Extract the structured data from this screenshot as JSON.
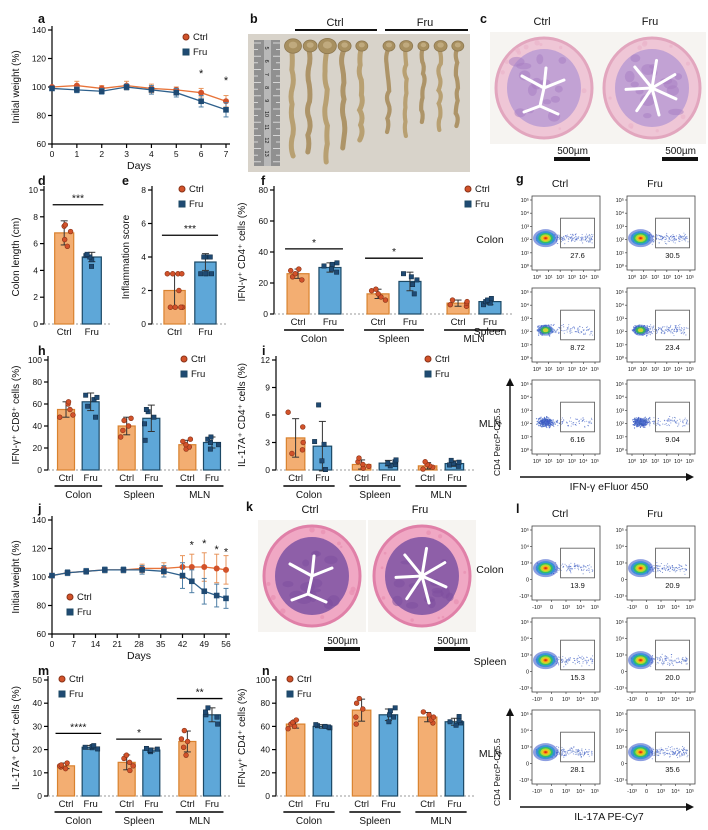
{
  "colors": {
    "ctrl_fill": "#F3AE72",
    "ctrl_edge": "#D9822F",
    "ctrl_point": "#D2522A",
    "ctrl_point_edge": "#8A3318",
    "ctrl_line": "#E8743A",
    "ctrl_err": "#E8955C",
    "fru_fill": "#5EA7D8",
    "fru_edge": "#1C4966",
    "fru_point": "#1F4A73",
    "fru_line": "#2E608C",
    "fru_err": "#4F7FA6"
  },
  "legend": {
    "ctrl": "Ctrl",
    "fru": "Fru"
  },
  "panels": {
    "a": {
      "letter": "a"
    },
    "b": {
      "letter": "b",
      "ctrl": "Ctrl",
      "fru": "Fru"
    },
    "c": {
      "letter": "c",
      "ctrl": "Ctrl",
      "fru": "Fru",
      "scale": "500µm"
    },
    "d": {
      "letter": "d"
    },
    "e": {
      "letter": "e"
    },
    "f": {
      "letter": "f"
    },
    "g": {
      "letter": "g"
    },
    "h": {
      "letter": "h"
    },
    "i": {
      "letter": "i"
    },
    "j": {
      "letter": "j"
    },
    "k": {
      "letter": "k",
      "ctrl": "Ctrl",
      "fru": "Fru",
      "scale": "500µm"
    },
    "l": {
      "letter": "l"
    },
    "m": {
      "letter": "m"
    },
    "n": {
      "letter": "n"
    }
  },
  "chart_data": [
    {
      "id": "a",
      "type": "line",
      "ylabel": "Initial weight (%)",
      "xlabel": "Days",
      "ylim": [
        60,
        140
      ],
      "yticks": [
        60,
        80,
        100,
        120,
        140
      ],
      "xlim": [
        0,
        7
      ],
      "xticks": [
        0,
        1,
        2,
        3,
        4,
        5,
        6,
        7
      ],
      "x": [
        0,
        1,
        2,
        3,
        4,
        5,
        6,
        7
      ],
      "series": [
        {
          "name": "Ctrl",
          "marker": "circle",
          "values": [
            100,
            101,
            99,
            101,
            99,
            98,
            96,
            90
          ],
          "errs": [
            1,
            3,
            2,
            3,
            3,
            2,
            3,
            4
          ]
        },
        {
          "name": "Fru",
          "marker": "square",
          "values": [
            99,
            98,
            97,
            100,
            98,
            96,
            90,
            84
          ],
          "errs": [
            1,
            2,
            2,
            2,
            3,
            3,
            4,
            5
          ]
        }
      ],
      "sig": [
        {
          "x": 6,
          "y": 107,
          "label": "*"
        },
        {
          "x": 7,
          "y": 102,
          "label": "*"
        }
      ],
      "legend": "tr"
    },
    {
      "id": "j",
      "type": "line",
      "ylabel": "Initial weight (%)",
      "xlabel": "Days",
      "ylim": [
        60,
        140
      ],
      "yticks": [
        60,
        80,
        100,
        120,
        140
      ],
      "xlim": [
        0,
        56
      ],
      "xticks": [
        0,
        7,
        14,
        21,
        28,
        35,
        42,
        49,
        56
      ],
      "x": [
        0,
        5,
        11,
        17,
        23,
        29,
        36,
        42,
        45,
        49,
        53,
        56
      ],
      "series": [
        {
          "name": "Ctrl",
          "marker": "circle",
          "values": [
            101,
            103,
            104,
            105,
            105,
            106,
            106,
            107,
            107,
            107,
            106,
            105
          ],
          "errs": [
            1,
            2,
            2,
            2,
            2,
            3,
            4,
            8,
            9,
            10,
            10,
            10
          ]
        },
        {
          "name": "Fru",
          "marker": "square",
          "values": [
            101,
            103,
            104,
            105,
            105,
            105,
            104,
            101,
            97,
            90,
            87,
            85
          ],
          "errs": [
            1,
            2,
            2,
            2,
            2,
            3,
            4,
            9,
            8,
            9,
            8,
            7
          ]
        }
      ],
      "sig": [
        {
          "x": 45,
          "y": 120,
          "label": "*"
        },
        {
          "x": 49,
          "y": 121,
          "label": "*"
        },
        {
          "x": 53,
          "y": 117,
          "label": "*"
        },
        {
          "x": 56,
          "y": 115,
          "label": "*"
        }
      ],
      "legend": "bl"
    },
    {
      "id": "d",
      "type": "bar",
      "ylabel": "Colon length (cm)",
      "ylim": [
        0,
        10
      ],
      "yticks": [
        0,
        2,
        4,
        6,
        8,
        10
      ],
      "groups": [
        ""
      ],
      "bar_labels": [
        "Ctrl",
        "Fru"
      ],
      "series": [
        {
          "name": "Ctrl",
          "means": [
            6.8
          ],
          "errs": [
            0.9
          ],
          "points": [
            [
              5.8,
              6.3,
              6.9,
              7.3,
              7.4
            ]
          ]
        },
        {
          "name": "Fru",
          "means": [
            5.0
          ],
          "errs": [
            0.35
          ],
          "points": [
            [
              4.3,
              4.8,
              5.0,
              5.1,
              5.2
            ]
          ]
        }
      ],
      "sig": [
        {
          "group": 0,
          "label": "***",
          "y": 8.9
        }
      ],
      "legend": null
    },
    {
      "id": "e",
      "type": "bar",
      "ylabel": "Inflammation score",
      "ylim": [
        0,
        8
      ],
      "yticks": [
        0,
        2,
        4,
        6,
        8
      ],
      "groups": [
        ""
      ],
      "bar_labels": [
        "Ctrl",
        "Fru"
      ],
      "series": [
        {
          "name": "Ctrl",
          "means": [
            2.0
          ],
          "errs": [
            1.0
          ],
          "points": [
            [
              1,
              1,
              1,
              1,
              2,
              3,
              3,
              3,
              3
            ]
          ]
        },
        {
          "name": "Fru",
          "means": [
            3.7
          ],
          "errs": [
            0.5
          ],
          "points": [
            [
              3,
              3,
              3,
              3,
              4,
              4,
              4,
              4
            ]
          ]
        }
      ],
      "sig": [
        {
          "group": 0,
          "label": "***",
          "y": 5.3
        }
      ],
      "legend": "tr"
    },
    {
      "id": "f",
      "type": "bar",
      "ylabel": "IFN-γ⁺ CD4⁺ cells (%)",
      "ylim": [
        0,
        80
      ],
      "yticks": [
        0,
        20,
        40,
        60,
        80
      ],
      "groups": [
        "Colon",
        "Spleen",
        "MLN"
      ],
      "bar_labels": [
        "Ctrl",
        "Fru"
      ],
      "series": [
        {
          "name": "Ctrl",
          "means": [
            26,
            13,
            7
          ],
          "errs": [
            3,
            3,
            2
          ],
          "points": [
            [
              22,
              24,
              26,
              28,
              29
            ],
            [
              9,
              11,
              13,
              15,
              16
            ],
            [
              5,
              6,
              7,
              8,
              9
            ]
          ]
        },
        {
          "name": "Fru",
          "means": [
            30,
            21,
            8
          ],
          "errs": [
            3,
            6,
            2
          ],
          "points": [
            [
              27,
              29,
              31,
              32,
              33
            ],
            [
              13,
              19,
              22,
              24,
              26
            ],
            [
              6,
              7,
              8,
              9,
              10
            ]
          ]
        }
      ],
      "sig": [
        {
          "group": 0,
          "label": "*",
          "y": 42
        },
        {
          "group": 1,
          "label": "*",
          "y": 36
        }
      ],
      "legend": "tr"
    },
    {
      "id": "h",
      "type": "bar",
      "ylabel": "IFN-γ⁺ CD8⁺ cells (%)",
      "ylim": [
        0,
        100
      ],
      "yticks": [
        0,
        20,
        40,
        60,
        80,
        100
      ],
      "groups": [
        "Colon",
        "Spleen",
        "MLN"
      ],
      "bar_labels": [
        "Ctrl",
        "Fru"
      ],
      "series": [
        {
          "name": "Ctrl",
          "means": [
            55,
            40,
            23
          ],
          "errs": [
            7,
            8,
            4
          ],
          "points": [
            [
              48,
              50,
              55,
              60,
              62
            ],
            [
              30,
              36,
              40,
              45,
              47
            ],
            [
              19,
              21,
              23,
              26,
              28
            ]
          ]
        },
        {
          "name": "Fru",
          "means": [
            62,
            47,
            25
          ],
          "errs": [
            8,
            12,
            5
          ],
          "points": [
            [
              48,
              58,
              64,
              66,
              68
            ],
            [
              27,
              42,
              48,
              53,
              55
            ],
            [
              19,
              23,
              25,
              28,
              30
            ]
          ]
        }
      ],
      "sig": [],
      "legend": "tr"
    },
    {
      "id": "i",
      "type": "bar",
      "ylabel": "IL-17A⁺ CD4⁺ cells (%)",
      "ylim": [
        0,
        12
      ],
      "yticks": [
        0,
        3,
        6,
        9,
        12
      ],
      "groups": [
        "Colon",
        "Spleen",
        "MLN"
      ],
      "bar_labels": [
        "Ctrl",
        "Fru"
      ],
      "series": [
        {
          "name": "Ctrl",
          "means": [
            3.5,
            0.6,
            0.45
          ],
          "errs": [
            2.1,
            0.5,
            0.35
          ],
          "points": [
            [
              1.8,
              2.2,
              3.0,
              4.7,
              6.3
            ],
            [
              0.2,
              0.4,
              0.6,
              0.9,
              1.3
            ],
            [
              0.1,
              0.3,
              0.45,
              0.6,
              0.9
            ]
          ]
        },
        {
          "name": "Fru",
          "means": [
            2.6,
            0.75,
            0.7
          ],
          "errs": [
            2.7,
            0.3,
            0.3
          ],
          "points": [
            [
              0.05,
              1.0,
              2.8,
              3.1,
              7.1
            ],
            [
              0.45,
              0.6,
              0.75,
              0.9,
              1.1
            ],
            [
              0.4,
              0.55,
              0.7,
              0.85,
              1.05
            ]
          ]
        }
      ],
      "sig": [],
      "legend": "tr"
    },
    {
      "id": "m",
      "type": "bar",
      "ylabel": "IL-17A⁺ CD4⁺ cells (%)",
      "ylim": [
        0,
        50
      ],
      "yticks": [
        0,
        10,
        20,
        30,
        40,
        50
      ],
      "groups": [
        "Colon",
        "Spleen",
        "MLN"
      ],
      "bar_labels": [
        "Ctrl",
        "Fru"
      ],
      "series": [
        {
          "name": "Ctrl",
          "means": [
            13,
            14.5,
            23.5
          ],
          "errs": [
            1.2,
            3.2,
            4.5
          ],
          "points": [
            [
              11.8,
              12.5,
              13,
              13.4,
              14.2
            ],
            [
              11,
              13,
              14.5,
              16.2,
              17.6
            ],
            [
              17.6,
              21,
              23.5,
              24.6,
              28.2
            ]
          ]
        },
        {
          "name": "Fru",
          "means": [
            21,
            19.8,
            35
          ],
          "errs": [
            0.8,
            0.8,
            3
          ],
          "points": [
            [
              20.3,
              20.8,
              21,
              21.3,
              21.7
            ],
            [
              19.1,
              19.6,
              19.8,
              20.2,
              20.5
            ],
            [
              31,
              34,
              35,
              36.2,
              38
            ]
          ]
        }
      ],
      "sig": [
        {
          "group": 0,
          "label": "****",
          "y": 27
        },
        {
          "group": 1,
          "label": "*",
          "y": 24.5
        },
        {
          "group": 2,
          "label": "**",
          "y": 42
        }
      ],
      "legend": "tl"
    },
    {
      "id": "n",
      "type": "bar",
      "ylabel": "IFN-γ⁺ CD4⁺ cells (%)",
      "ylim": [
        0,
        100
      ],
      "yticks": [
        0,
        20,
        40,
        60,
        80,
        100
      ],
      "groups": [
        "Colon",
        "Spleen",
        "MLN"
      ],
      "bar_labels": [
        "Ctrl",
        "Fru"
      ],
      "series": [
        {
          "name": "Ctrl",
          "means": [
            62,
            74,
            68
          ],
          "errs": [
            3.5,
            9.5,
            4
          ],
          "points": [
            [
              58,
              60,
              62,
              63.5,
              65.5
            ],
            [
              62,
              68,
              75,
              80,
              84
            ],
            [
              63,
              65.5,
              68,
              70,
              72.5
            ]
          ]
        },
        {
          "name": "Fru",
          "means": [
            60,
            70,
            64
          ],
          "errs": [
            1.5,
            5,
            3
          ],
          "points": [
            [
              58.8,
              59.5,
              60,
              60.6,
              61.5
            ],
            [
              64,
              68,
              70,
              73.5,
              76
            ],
            [
              61,
              63,
              64,
              65,
              68.5
            ]
          ]
        }
      ],
      "sig": [],
      "legend": "tl"
    },
    {
      "id": "g",
      "type": "flow",
      "col_headers": [
        "Ctrl",
        "Fru"
      ],
      "row_labels": [
        "Colon",
        "Spleen",
        "MLN"
      ],
      "values": [
        [
          "27.6",
          "30.5"
        ],
        [
          "8.72",
          "23.4"
        ],
        [
          "6.16",
          "9.04"
        ]
      ],
      "xlabel": "IFN-γ eFluor 450",
      "ylabel": "CD4 PercP-Cy5.5",
      "xticks": [
        "10⁰",
        "10¹",
        "10²",
        "10³",
        "10⁴",
        "10⁵"
      ],
      "yticks": [
        "10⁵",
        "10⁴",
        "10³",
        "10²",
        "10¹",
        "10⁰"
      ],
      "core": [
        "full",
        "small",
        "none"
      ]
    },
    {
      "id": "l",
      "type": "flow",
      "col_headers": [
        "Ctrl",
        "Fru"
      ],
      "row_labels": [
        "Colon",
        "Spleen",
        "MLN"
      ],
      "values": [
        [
          "13.9",
          "20.9"
        ],
        [
          "15.3",
          "20.0"
        ],
        [
          "28.1",
          "35.6"
        ]
      ],
      "xlabel": "IL-17A PE-Cy7",
      "ylabel": "CD4 PercP-Cy5.5",
      "xticks": [
        "-10³",
        "0",
        "10³",
        "10⁴",
        "10⁵"
      ],
      "yticks": [
        "10⁵",
        "10⁴",
        "10³",
        "0",
        "-10³"
      ],
      "core": [
        "full",
        "full",
        "full"
      ]
    }
  ]
}
